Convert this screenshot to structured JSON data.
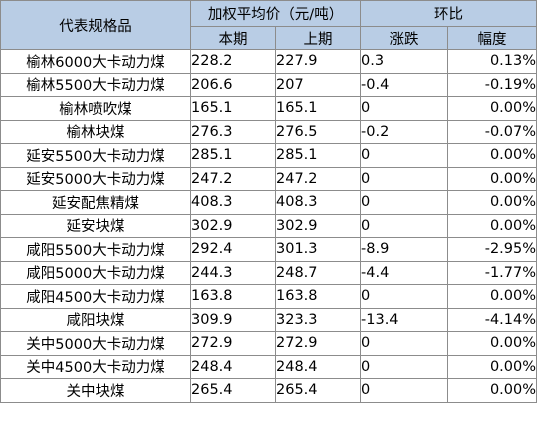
{
  "table": {
    "header": {
      "spec": "代表规格品",
      "price_group": "加权平均价（元/吨）",
      "change_group": "环比",
      "current": "本期",
      "previous": "上期",
      "change": "涨跌",
      "pct": "幅度"
    },
    "rows": [
      {
        "name": "榆林6000大卡动力煤",
        "current": "228.2",
        "previous": "227.9",
        "change": "0.3",
        "pct": "0.13%"
      },
      {
        "name": "榆林5500大卡动力煤",
        "current": "206.6",
        "previous": "207",
        "change": "-0.4",
        "pct": "-0.19%"
      },
      {
        "name": "榆林喷吹煤",
        "current": "165.1",
        "previous": "165.1",
        "change": "0",
        "pct": "0.00%"
      },
      {
        "name": "榆林块煤",
        "current": "276.3",
        "previous": "276.5",
        "change": "-0.2",
        "pct": "-0.07%"
      },
      {
        "name": "延安5500大卡动力煤",
        "current": "285.1",
        "previous": "285.1",
        "change": "0",
        "pct": "0.00%"
      },
      {
        "name": "延安5000大卡动力煤",
        "current": "247.2",
        "previous": "247.2",
        "change": "0",
        "pct": "0.00%"
      },
      {
        "name": "延安配焦精煤",
        "current": "408.3",
        "previous": "408.3",
        "change": "0",
        "pct": "0.00%"
      },
      {
        "name": "延安块煤",
        "current": "302.9",
        "previous": "302.9",
        "change": "0",
        "pct": "0.00%"
      },
      {
        "name": "咸阳5500大卡动力煤",
        "current": "292.4",
        "previous": "301.3",
        "change": "-8.9",
        "pct": "-2.95%"
      },
      {
        "name": "咸阳5000大卡动力煤",
        "current": "244.3",
        "previous": "248.7",
        "change": "-4.4",
        "pct": "-1.77%"
      },
      {
        "name": "咸阳4500大卡动力煤",
        "current": "163.8",
        "previous": "163.8",
        "change": "0",
        "pct": "0.00%"
      },
      {
        "name": "咸阳块煤",
        "current": "309.9",
        "previous": "323.3",
        "change": "-13.4",
        "pct": "-4.14%"
      },
      {
        "name": "关中5000大卡动力煤",
        "current": "272.9",
        "previous": "272.9",
        "change": "0",
        "pct": "0.00%"
      },
      {
        "name": "关中4500大卡动力煤",
        "current": "248.4",
        "previous": "248.4",
        "change": "0",
        "pct": "0.00%"
      },
      {
        "name": "关中块煤",
        "current": "265.4",
        "previous": "265.4",
        "change": "0",
        "pct": "0.00%"
      }
    ]
  },
  "colors": {
    "header_bg": "#b9cde5",
    "border": "#8c8c8c",
    "text": "#000000"
  }
}
